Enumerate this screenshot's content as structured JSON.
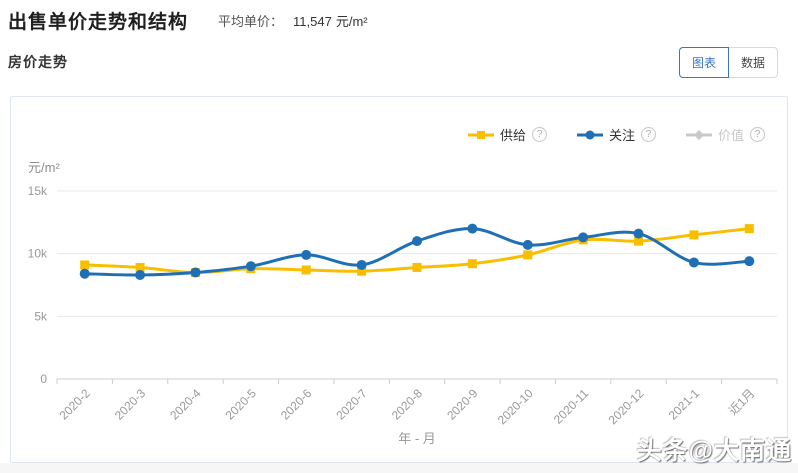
{
  "header": {
    "title": "出售单价走势和结构",
    "avg_label": "平均单价：",
    "avg_value": "11,547",
    "avg_unit": "元/m²"
  },
  "section": {
    "title": "房价走势",
    "toggle": {
      "chart": "图表",
      "data": "数据"
    }
  },
  "legend": [
    {
      "name": "供给",
      "color": "#f9be00",
      "marker": "square",
      "active": true,
      "help": "?"
    },
    {
      "name": "关注",
      "color": "#1f6fb5",
      "marker": "circle",
      "active": true,
      "help": "?"
    },
    {
      "name": "价值",
      "color": "#c9c9c9",
      "marker": "diamond",
      "active": false,
      "help": "?"
    }
  ],
  "chart_data": {
    "type": "line",
    "title": "房价走势",
    "categories": [
      "2020-2",
      "2020-3",
      "2020-4",
      "2020-5",
      "2020-6",
      "2020-7",
      "2020-8",
      "2020-9",
      "2020-10",
      "2020-11",
      "2020-12",
      "2021-1",
      "近1月"
    ],
    "series": [
      {
        "name": "供给",
        "color": "#f9be00",
        "marker": "square",
        "values": [
          9100,
          8900,
          8500,
          8800,
          8700,
          8600,
          8900,
          9200,
          9900,
          11100,
          11000,
          11500,
          12000
        ]
      },
      {
        "name": "关注",
        "color": "#1f6fb5",
        "marker": "circle",
        "values": [
          8400,
          8300,
          8500,
          9000,
          9900,
          9100,
          11000,
          12000,
          10700,
          11300,
          11600,
          9300,
          9400
        ]
      }
    ],
    "ylabel": "元/m²",
    "xlabel": "年 - 月",
    "ylim": [
      0,
      15000
    ],
    "yticks": [
      {
        "label": "0",
        "value": 0
      },
      {
        "label": "5k",
        "value": 5000
      },
      {
        "label": "10k",
        "value": 10000
      },
      {
        "label": "15k",
        "value": 15000
      }
    ],
    "grid": true,
    "legend_position": "top-right",
    "smooth": true
  },
  "watermark": "头条@大南通"
}
